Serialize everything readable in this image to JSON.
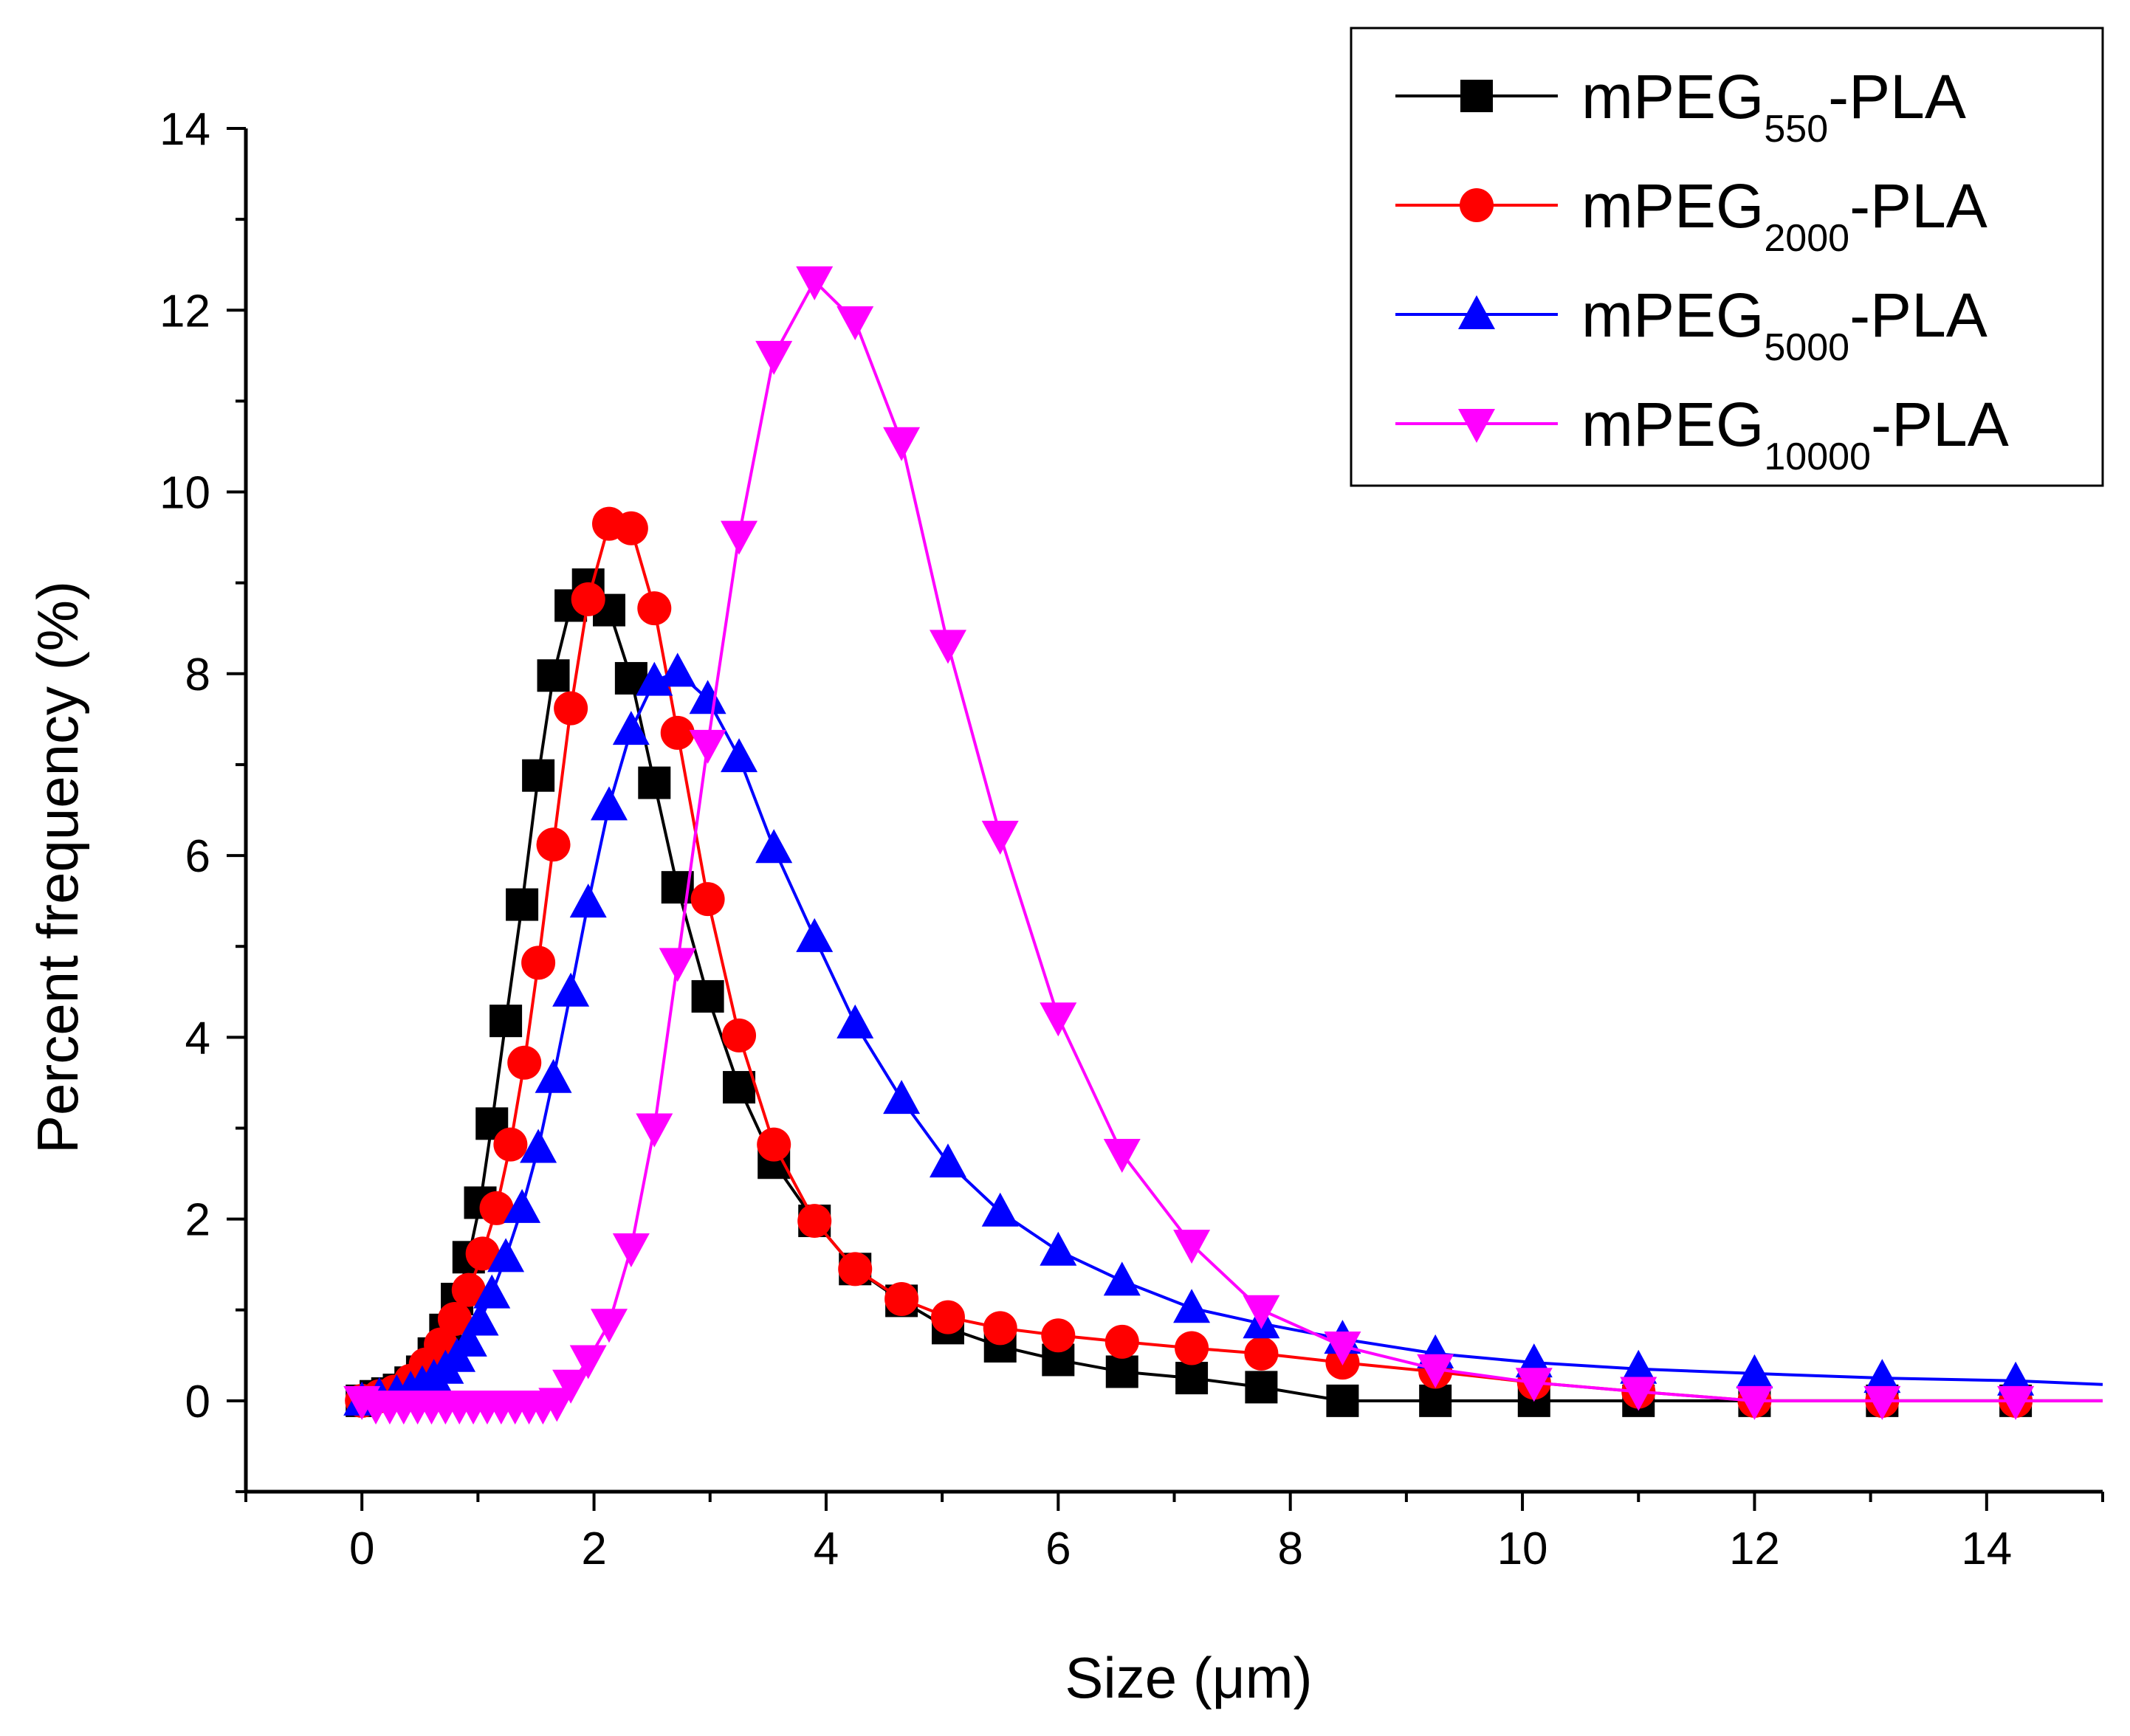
{
  "chart_data": {
    "type": "line",
    "title": "",
    "xlabel": "Size (μm)",
    "ylabel": "Percent frequency (%)",
    "xlim": [
      -1,
      15
    ],
    "ylim": [
      -1,
      14
    ],
    "xticks": [
      0,
      2,
      4,
      6,
      8,
      10,
      12,
      14
    ],
    "yticks": [
      0,
      2,
      4,
      6,
      8,
      10,
      12,
      14
    ],
    "xtick_labels": [
      "0",
      "2",
      "4",
      "6",
      "8",
      "10",
      "12",
      "14"
    ],
    "ytick_labels": [
      "0",
      "2",
      "4",
      "6",
      "8",
      "10",
      "12",
      "14"
    ],
    "grid": false,
    "legend_position": "top-right",
    "series": [
      {
        "name": "mPEG550-PLA",
        "label_main": "mPEG",
        "label_sub": "550",
        "label_suffix": "-PLA",
        "color": "#000000",
        "marker": "square",
        "x": [
          0,
          0.12,
          0.22,
          0.32,
          0.42,
          0.52,
          0.62,
          0.72,
          0.82,
          0.92,
          1.02,
          1.12,
          1.24,
          1.38,
          1.52,
          1.65,
          1.8,
          1.95,
          2.13,
          2.32,
          2.52,
          2.72,
          2.98,
          3.25,
          3.55,
          3.9,
          4.25,
          4.65,
          5.05,
          5.5,
          6.0,
          6.55,
          7.15,
          7.75,
          8.45,
          9.25,
          10.1,
          11.0,
          12.0,
          13.1,
          14.25,
          15.0
        ],
        "y": [
          0,
          0.05,
          0.08,
          0.12,
          0.2,
          0.32,
          0.52,
          0.78,
          1.12,
          1.58,
          2.18,
          3.05,
          4.18,
          5.46,
          6.88,
          7.98,
          8.75,
          8.98,
          8.7,
          7.95,
          6.8,
          5.65,
          4.45,
          3.45,
          2.62,
          1.98,
          1.45,
          1.1,
          0.8,
          0.6,
          0.45,
          0.32,
          0.25,
          0.15,
          0,
          0,
          0,
          0,
          0,
          0,
          0,
          0
        ]
      },
      {
        "name": "mPEG2000-PLA",
        "label_main": "mPEG",
        "label_sub": "2000",
        "label_suffix": "-PLA",
        "color": "#ff0000",
        "marker": "circle",
        "x": [
          0,
          0.15,
          0.28,
          0.42,
          0.55,
          0.68,
          0.8,
          0.92,
          1.04,
          1.16,
          1.28,
          1.4,
          1.52,
          1.65,
          1.8,
          1.95,
          2.13,
          2.32,
          2.52,
          2.72,
          2.98,
          3.25,
          3.55,
          3.9,
          4.25,
          4.65,
          5.05,
          5.5,
          6.0,
          6.55,
          7.15,
          7.75,
          8.45,
          9.25,
          10.1,
          11.0,
          12.0,
          13.1,
          14.25,
          15.0
        ],
        "y": [
          0,
          0.05,
          0.1,
          0.22,
          0.4,
          0.62,
          0.9,
          1.22,
          1.62,
          2.12,
          2.82,
          3.72,
          4.82,
          6.12,
          7.62,
          8.82,
          9.65,
          9.6,
          8.72,
          7.35,
          5.52,
          4.02,
          2.82,
          1.98,
          1.45,
          1.12,
          0.92,
          0.8,
          0.72,
          0.65,
          0.58,
          0.52,
          0.42,
          0.32,
          0.2,
          0.1,
          0,
          0,
          0,
          0
        ]
      },
      {
        "name": "mPEG5000-PLA",
        "label_main": "mPEG",
        "label_sub": "5000",
        "label_suffix": "-PLA",
        "color": "#0000ff",
        "marker": "triangle-up",
        "x": [
          0,
          0.15,
          0.3,
          0.42,
          0.52,
          0.62,
          0.72,
          0.82,
          0.92,
          1.02,
          1.12,
          1.24,
          1.38,
          1.52,
          1.65,
          1.8,
          1.95,
          2.13,
          2.32,
          2.52,
          2.72,
          2.98,
          3.25,
          3.55,
          3.9,
          4.25,
          4.65,
          5.05,
          5.5,
          6.0,
          6.55,
          7.15,
          7.75,
          8.45,
          9.25,
          10.1,
          11.0,
          12.0,
          13.1,
          14.25,
          15.0
        ],
        "y": [
          0,
          0.05,
          0.08,
          0.12,
          0.18,
          0.25,
          0.35,
          0.48,
          0.65,
          0.88,
          1.18,
          1.58,
          2.12,
          2.78,
          3.55,
          4.5,
          5.48,
          6.55,
          7.38,
          7.92,
          8.02,
          7.72,
          7.08,
          6.08,
          5.1,
          4.15,
          3.32,
          2.62,
          2.08,
          1.65,
          1.32,
          1.02,
          0.85,
          0.68,
          0.52,
          0.42,
          0.35,
          0.3,
          0.25,
          0.22,
          0.18
        ]
      },
      {
        "name": "mPEG10000-PLA",
        "label_main": "mPEG",
        "label_sub": "10000",
        "label_suffix": "-PLA",
        "color": "#ff00ff",
        "marker": "triangle-down",
        "x": [
          0,
          0.12,
          0.24,
          0.36,
          0.48,
          0.6,
          0.72,
          0.84,
          0.96,
          1.08,
          1.2,
          1.32,
          1.44,
          1.56,
          1.68,
          1.8,
          1.95,
          2.13,
          2.32,
          2.52,
          2.72,
          2.98,
          3.25,
          3.55,
          3.9,
          4.25,
          4.65,
          5.05,
          5.5,
          6.0,
          6.55,
          7.15,
          7.75,
          8.45,
          9.25,
          10.1,
          11.0,
          12.0,
          13.1,
          14.25,
          15.0
        ],
        "y": [
          0,
          -0.05,
          -0.05,
          -0.05,
          -0.05,
          -0.05,
          -0.05,
          -0.05,
          -0.05,
          -0.05,
          -0.05,
          -0.05,
          -0.05,
          -0.05,
          -0.02,
          0.18,
          0.45,
          0.85,
          1.68,
          3.0,
          4.82,
          7.22,
          9.52,
          11.5,
          12.32,
          11.88,
          10.55,
          8.32,
          6.22,
          4.22,
          2.72,
          1.72,
          1.0,
          0.6,
          0.35,
          0.2,
          0.1,
          0,
          0,
          0,
          0
        ]
      }
    ]
  }
}
